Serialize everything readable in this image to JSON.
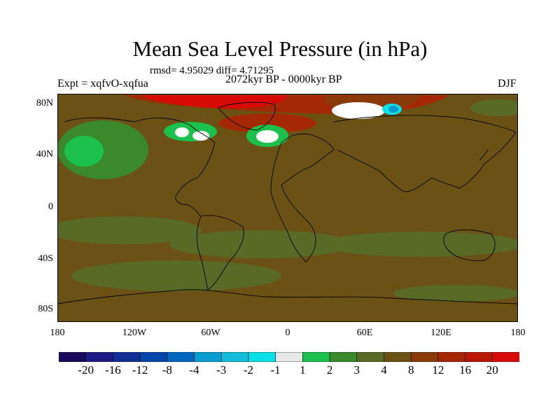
{
  "title": "Mean Sea Level Pressure (in hPa)",
  "stats": "rmsd= 4.95029 diff= 4.71295",
  "experiment": "Expt = xqfvO-xqfua",
  "period": "2072kyr BP - 0000kyr BP",
  "season": "DJF",
  "axes": {
    "y_ticks": [
      "80N",
      "40N",
      "0",
      "40S",
      "80S"
    ],
    "x_ticks": [
      "180",
      "120W",
      "60W",
      "0",
      "60E",
      "120E",
      "180"
    ]
  },
  "colorbar": {
    "labels": [
      "-20",
      "-16",
      "-12",
      "-8",
      "-4",
      "-3",
      "-2",
      "-1",
      "1",
      "2",
      "3",
      "4",
      "8",
      "12",
      "16",
      "20"
    ],
    "colors": [
      "#1a0a5e",
      "#1c1a86",
      "#102f96",
      "#0646a8",
      "#0066be",
      "#089cd0",
      "#14bcdc",
      "#0ae0e8",
      "#e8e8e8",
      "#1cc04c",
      "#3a8a2c",
      "#586a26",
      "#6b5214",
      "#8a3a06",
      "#a42804",
      "#b81804",
      "#d80a08"
    ]
  },
  "map_colors": {
    "background": "#6b5214",
    "light_green": "#586a26",
    "green": "#3a8a2c",
    "bright_green": "#1cc04c",
    "red": "#d80a08",
    "dark_red": "#a42804",
    "orange": "#8a3a06",
    "white": "#ffffff",
    "cyan": "#0ae0e8",
    "blue": "#089cd0"
  }
}
